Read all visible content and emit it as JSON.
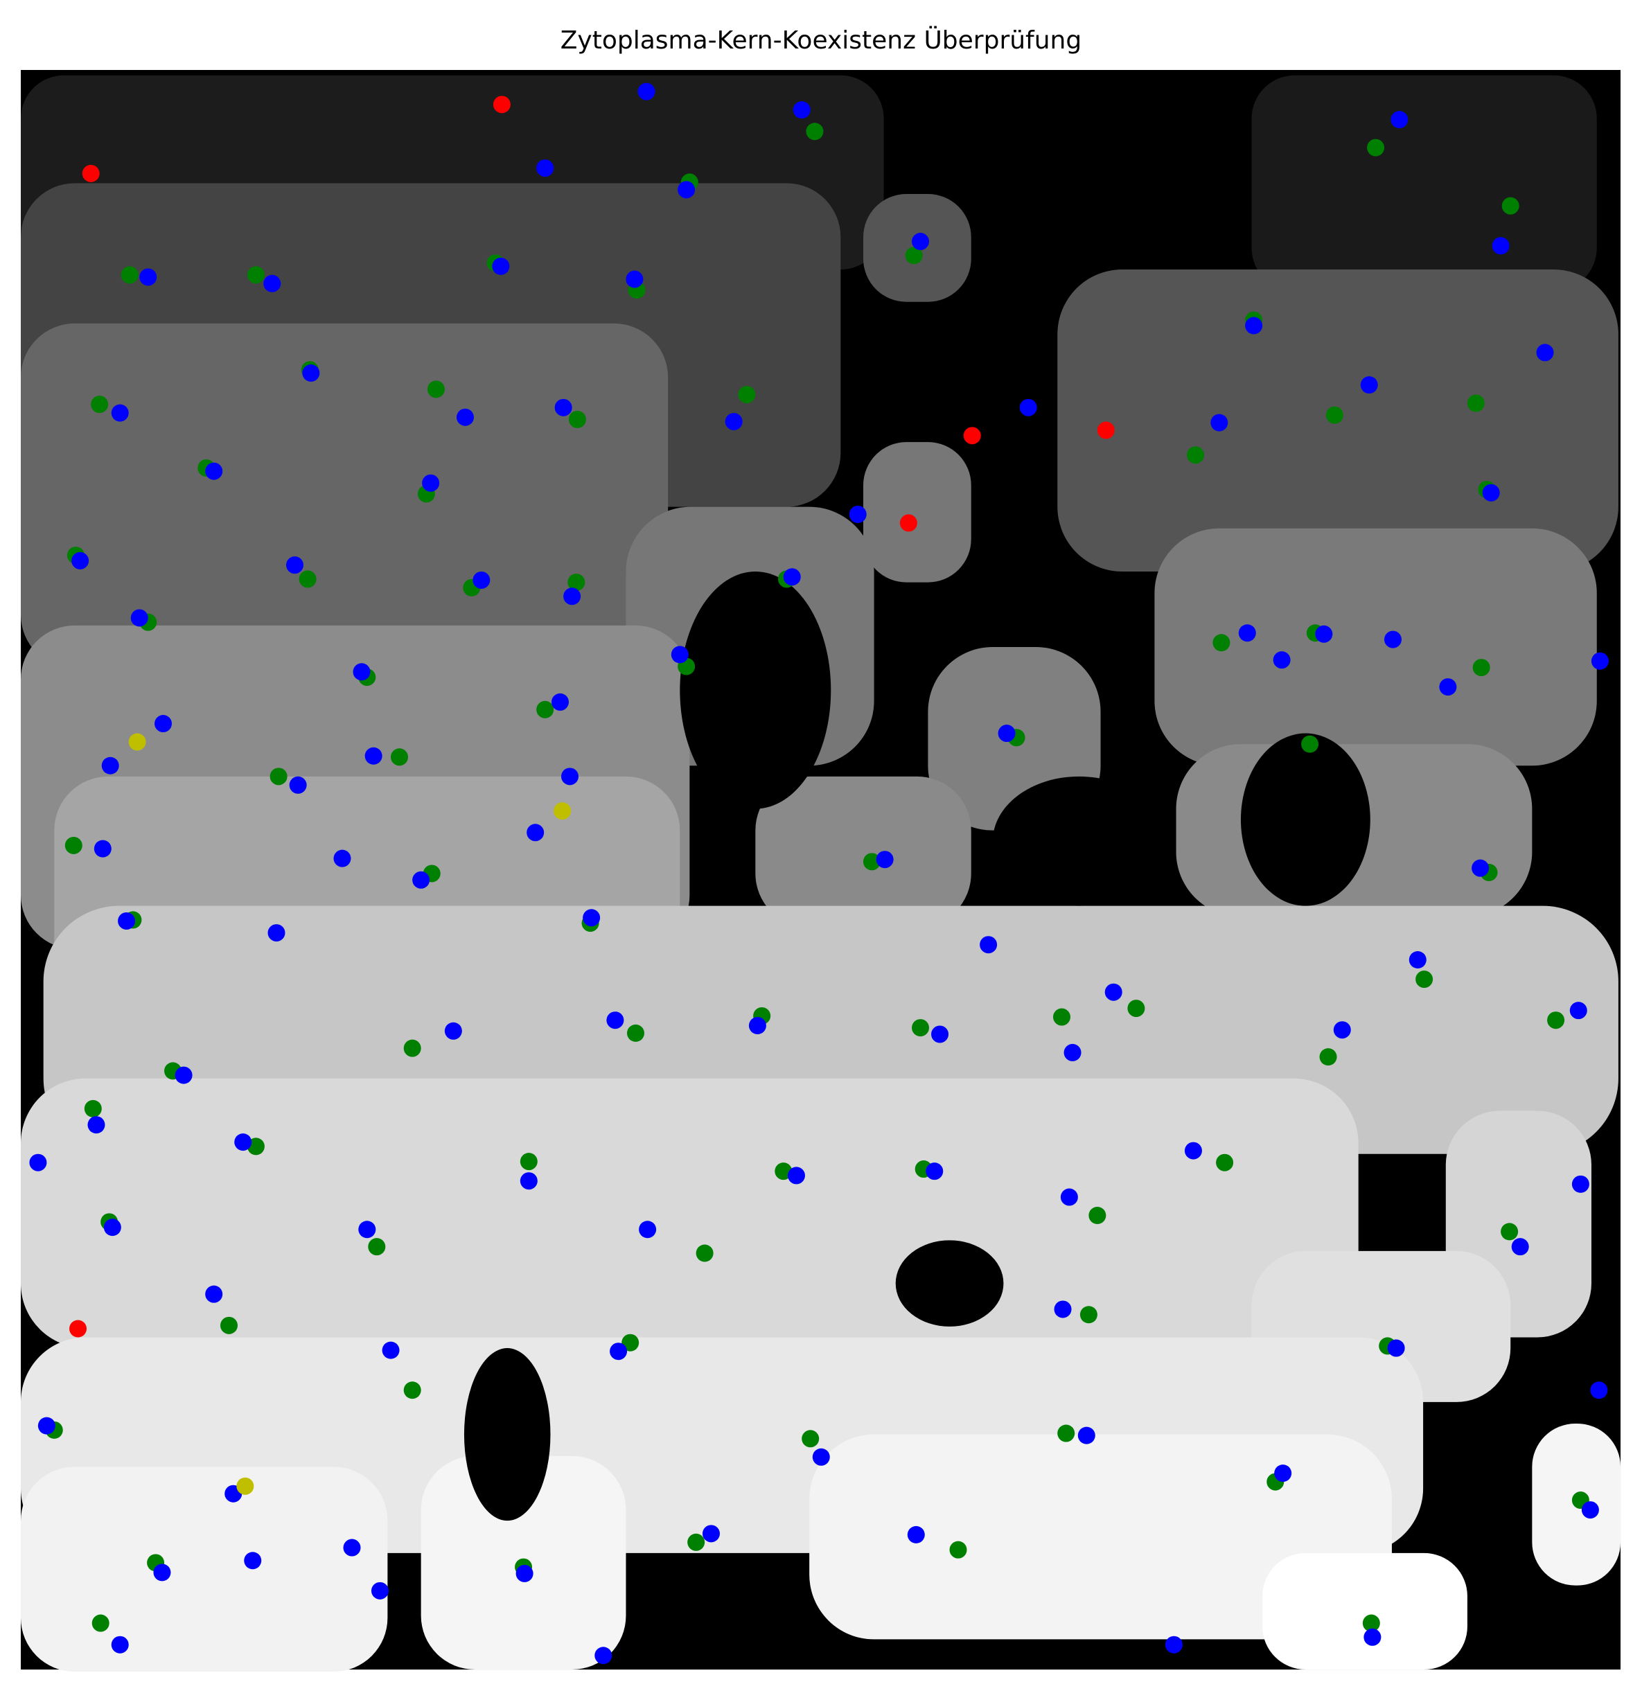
{
  "chart_data": {
    "type": "scatter",
    "title": "Zytoplasma-Kern-Koexistenz Überprüfung",
    "xlim": [
      19,
      1502
    ],
    "ylim": [
      1548,
      65
    ],
    "series": [
      {
        "color": "#008000",
        "x": [
          120,
          237,
          755,
          1275,
          1400,
          639,
          847,
          459,
          590,
          1162,
          287,
          404,
          92,
          535,
          692,
          1108,
          1237,
          1368,
          191,
          395,
          1378,
          70,
          285,
          437,
          534,
          729,
          137,
          340,
          636,
          1132,
          1219,
          1373,
          505,
          942,
          258,
          370,
          1214,
          68,
          400,
          808,
          1380,
          123,
          547,
          1320,
          706,
          382,
          589,
          853,
          984,
          1053,
          1442,
          1231,
          160,
          86,
          237,
          490,
          726,
          856,
          1135,
          101,
          349,
          653,
          1017,
          1399,
          212,
          584,
          1009,
          1286,
          382,
          50,
          751,
          988,
          1182,
          1465,
          144,
          485,
          645,
          888,
          93,
          1271
        ],
        "y": [
          255,
          255,
          122,
          137,
          191,
          169,
          237,
          244,
          269,
          297,
          343,
          361,
          375,
          389,
          366,
          422,
          385,
          374,
          434,
          458,
          454,
          515,
          537,
          545,
          540,
          537,
          577,
          628,
          618,
          596,
          587,
          619,
          658,
          684,
          720,
          702,
          690,
          784,
          810,
          799,
          809,
          853,
          856,
          908,
          942,
          972,
          958,
          953,
          943,
          935,
          946,
          980,
          993,
          1028,
          1063,
          1077,
          1086,
          1084,
          1078,
          1133,
          1156,
          1162,
          1127,
          1142,
          1229,
          1245,
          1219,
          1248,
          1289,
          1326,
          1334,
          1329,
          1374,
          1391,
          1449,
          1453,
          1430,
          1437,
          1505,
          1505
        ]
      },
      {
        "color": "#0000ff",
        "x": [
          599,
          743,
          1297,
          505,
          636,
          137,
          252,
          464,
          588,
          853,
          1391,
          1162,
          288,
          1432,
          111,
          431,
          522,
          680,
          953,
          1130,
          1269,
          198,
          399,
          1382,
          795,
          74,
          273,
          446,
          530,
          734,
          129,
          335,
          630,
          1156,
          1227,
          1188,
          1291,
          1342,
          1483,
          519,
          151,
          933,
          102,
          276,
          346,
          528,
          95,
          496,
          317,
          390,
          820,
          1372,
          117,
          256,
          548,
          916,
          1314,
          1032,
          570,
          702,
          420,
          871,
          994,
          1244,
          1463,
          170,
          89,
          225,
          35,
          490,
          738,
          866,
          1106,
          991,
          1465,
          104,
          340,
          600,
          1409,
          198,
          985,
          573,
          1294,
          362,
          43,
          1007,
          1482,
          761,
          1189,
          216,
          1474,
          659,
          849,
          326,
          234,
          150,
          486,
          352,
          111,
          559,
          1088,
          1272
        ],
        "y": [
          85,
          102,
          111,
          156,
          176,
          257,
          263,
          247,
          259,
          224,
          228,
          302,
          346,
          327,
          383,
          387,
          378,
          391,
          378,
          392,
          357,
          437,
          448,
          457,
          477,
          520,
          524,
          538,
          553,
          535,
          573,
          623,
          607,
          587,
          588,
          612,
          593,
          637,
          613,
          651,
          671,
          680,
          710,
          728,
          701,
          720,
          787,
          772,
          796,
          816,
          797,
          805,
          854,
          865,
          851,
          876,
          890,
          920,
          946,
          951,
          956,
          959,
          976,
          955,
          937,
          997,
          1043,
          1059,
          1078,
          1095,
          1090,
          1086,
          1067,
          1110,
          1098,
          1138,
          1140,
          1140,
          1156,
          1200,
          1214,
          1253,
          1250,
          1252,
          1322,
          1331,
          1289,
          1351,
          1366,
          1385,
          1400,
          1422,
          1423,
          1435,
          1447,
          1458,
          1459,
          1475,
          1525,
          1535,
          1525,
          1518
        ]
      },
      {
        "color": "#ff0000",
        "x": [
          465,
          84,
          901,
          1025,
          842,
          72
        ],
        "y": [
          97,
          161,
          404,
          399,
          485,
          1232
        ]
      },
      {
        "color": "#bfbf00",
        "x": [
          127,
          521,
          227
        ],
        "y": [
          688,
          752,
          1378
        ]
      }
    ]
  }
}
